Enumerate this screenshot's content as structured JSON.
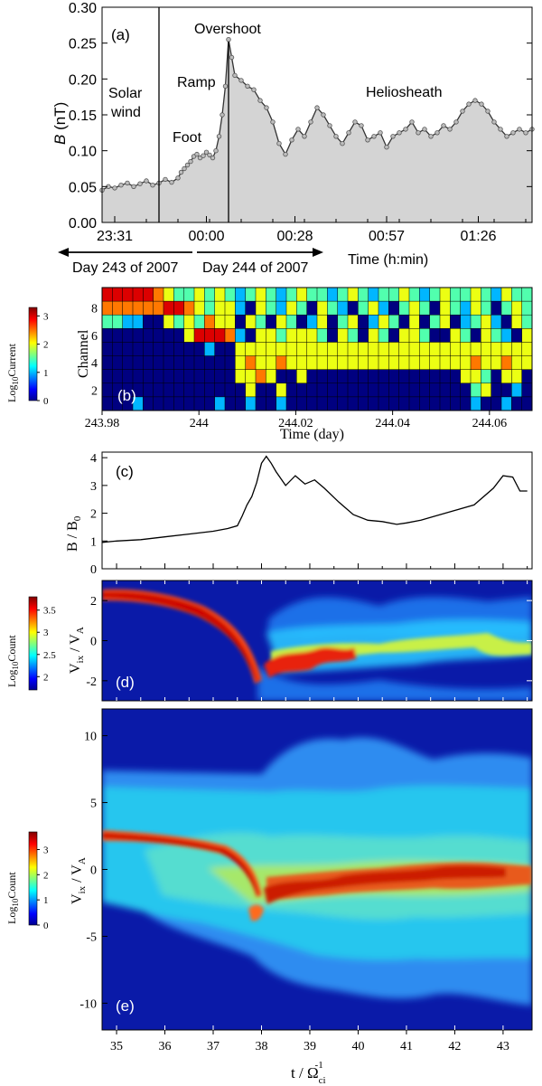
{
  "chart_data": [
    {
      "panel": "(a)",
      "type": "area",
      "xlabel": "Time (h:min)",
      "ylabel": "B (nT)",
      "ylim": [
        0,
        0.3
      ],
      "yticks": [
        "0.00",
        "0.05",
        "0.10",
        "0.15",
        "0.20",
        "0.25",
        "0.30"
      ],
      "xticks": [
        "23:31",
        "00:00",
        "00:28",
        "00:57",
        "01:26"
      ],
      "x_minutes_from_2331": [
        0,
        29,
        57,
        86,
        115
      ],
      "regions": [
        "Solar wind",
        "Foot",
        "Ramp",
        "Overshoot",
        "Heliosheath"
      ],
      "day_labels": [
        "Day 243 of 2007",
        "Day 244 of 2007"
      ],
      "series": [
        {
          "x": [
            -4,
            -2,
            0,
            2,
            4,
            6,
            8,
            10,
            12,
            14,
            16,
            18,
            20,
            21,
            22,
            23,
            24,
            25,
            26,
            27,
            28,
            29,
            30,
            31,
            32,
            33,
            34,
            35,
            36,
            37,
            38,
            40,
            42,
            44,
            46,
            48,
            50,
            52,
            54,
            56,
            58,
            60,
            62,
            64,
            66,
            68,
            70,
            72,
            74,
            76,
            78,
            80,
            82,
            84,
            86,
            88,
            90,
            92,
            94,
            96,
            98,
            100,
            102,
            104,
            106,
            108,
            110,
            112,
            114,
            116,
            118,
            120,
            122,
            124,
            126,
            128,
            130,
            132
          ],
          "values": [
            0.045,
            0.05,
            0.048,
            0.052,
            0.055,
            0.05,
            0.054,
            0.058,
            0.052,
            0.055,
            0.06,
            0.056,
            0.062,
            0.07,
            0.075,
            0.08,
            0.085,
            0.092,
            0.095,
            0.09,
            0.093,
            0.098,
            0.094,
            0.09,
            0.1,
            0.12,
            0.15,
            0.19,
            0.255,
            0.23,
            0.205,
            0.198,
            0.19,
            0.185,
            0.17,
            0.16,
            0.14,
            0.11,
            0.095,
            0.115,
            0.13,
            0.12,
            0.14,
            0.16,
            0.15,
            0.135,
            0.12,
            0.11,
            0.125,
            0.14,
            0.135,
            0.115,
            0.12,
            0.125,
            0.105,
            0.12,
            0.125,
            0.13,
            0.14,
            0.125,
            0.13,
            0.12,
            0.125,
            0.135,
            0.13,
            0.14,
            0.155,
            0.165,
            0.17,
            0.165,
            0.155,
            0.14,
            0.13,
            0.12,
            0.125,
            0.13,
            0.125,
            0.13
          ]
        }
      ]
    },
    {
      "panel": "(b)",
      "type": "heatmap",
      "xlabel": "Time (day)",
      "ylabel": "Channel",
      "xticks": [
        "243.98",
        "244",
        "244.02",
        "244.04",
        "244.06"
      ],
      "yticks": [
        "2",
        "4",
        "6",
        "8"
      ],
      "colorbar_label": "Log10Current",
      "colorbar_ticks": [
        "0",
        "1",
        "2",
        "3"
      ],
      "channels_top_to_bottom": [
        9,
        8,
        7,
        6,
        5,
        4,
        3,
        2,
        1
      ],
      "grid": [
        [
          3,
          3,
          3,
          3,
          3,
          2.5,
          2,
          1.5,
          1.5,
          2,
          1.5,
          2,
          1.5,
          1,
          1.5,
          2,
          1.5,
          1,
          1.5,
          2,
          1.5,
          1.5,
          1,
          1.5,
          2,
          1.5,
          1,
          1.5,
          1.5,
          2,
          1.5,
          1,
          1.5,
          2,
          1.5,
          1.5,
          2,
          1.5,
          1,
          2,
          1.5,
          1.5
        ],
        [
          2.5,
          2.5,
          2.5,
          2.5,
          2.5,
          2.5,
          3,
          3,
          2.5,
          2,
          1.5,
          2,
          2,
          1,
          0,
          2,
          1.5,
          1,
          2,
          1.5,
          0,
          2,
          1.5,
          1,
          0,
          1.5,
          2,
          1,
          0,
          1.5,
          2,
          1.5,
          0,
          2,
          1.5,
          1,
          2,
          1.5,
          0,
          1.5,
          2,
          1.5
        ],
        [
          1.5,
          1.5,
          1,
          1,
          0,
          0,
          2,
          1.5,
          2,
          1.5,
          2.5,
          2,
          2,
          0,
          2,
          1.5,
          0,
          2,
          1.5,
          0,
          1,
          2,
          0,
          1.5,
          2,
          0,
          1,
          2,
          1.5,
          0,
          2,
          0,
          1.5,
          2,
          0,
          1,
          1.5,
          2,
          1,
          0,
          2,
          1.5
        ],
        [
          0,
          0,
          0,
          0,
          0,
          0,
          0,
          0,
          2,
          3,
          3,
          3,
          2.5,
          1,
          0,
          2,
          2,
          1.5,
          2,
          2,
          2,
          1.5,
          0,
          2,
          1.5,
          0,
          2,
          1.5,
          0,
          2,
          2,
          1.5,
          0,
          0,
          2,
          1.5,
          0,
          2,
          1.5,
          1,
          0,
          2
        ],
        [
          0,
          0,
          0,
          0,
          0,
          0,
          0,
          0,
          0,
          0,
          1,
          0,
          0,
          2,
          2,
          2,
          2,
          2,
          2,
          2,
          2,
          2,
          2,
          2,
          2,
          2,
          2,
          2,
          2,
          2,
          2,
          2,
          2,
          2,
          2,
          2,
          2,
          2,
          2,
          2,
          2,
          2
        ],
        [
          0,
          0,
          0,
          0,
          0,
          0,
          0,
          0,
          0,
          0,
          0,
          0,
          0,
          2,
          2.5,
          2,
          2,
          2.5,
          2,
          2,
          2,
          2,
          2,
          2,
          2,
          2,
          2,
          2,
          2,
          2,
          2,
          2,
          2,
          2,
          2,
          2,
          2.5,
          2,
          2,
          2.5,
          2,
          2
        ],
        [
          0,
          0,
          0,
          0,
          0,
          0,
          0,
          0,
          0,
          0,
          0,
          0,
          0,
          2,
          2,
          2.5,
          2,
          0,
          0,
          2,
          0,
          0,
          0,
          0,
          0,
          0,
          0,
          0,
          0,
          0,
          0,
          0,
          0,
          0,
          0,
          2,
          2,
          1.5,
          0,
          2,
          2,
          0
        ],
        [
          0,
          0,
          0,
          0,
          0,
          0,
          0,
          0,
          0,
          0,
          0,
          0,
          0,
          0,
          2,
          0,
          0,
          2,
          0,
          0,
          0,
          0,
          0,
          0,
          0,
          0,
          0,
          0,
          0,
          0,
          0,
          0,
          0,
          0,
          0,
          0,
          1.5,
          2,
          0,
          0,
          1,
          0
        ],
        [
          0,
          0,
          0,
          1,
          0,
          0,
          0,
          0,
          0,
          0,
          0,
          1,
          0,
          0,
          1,
          0,
          0,
          1,
          0,
          0,
          0,
          0,
          0,
          0,
          0,
          0,
          0,
          0,
          0,
          0,
          0,
          0,
          0,
          0,
          0,
          0,
          1,
          0,
          0,
          1,
          0,
          0
        ]
      ]
    },
    {
      "panel": "(c)",
      "type": "line",
      "ylabel": "B / B0",
      "ylim": [
        0,
        4.2
      ],
      "yticks": [
        "0",
        "1",
        "2",
        "3",
        "4"
      ],
      "x": [
        34.7,
        35,
        35.5,
        36,
        36.5,
        37,
        37.3,
        37.5,
        37.6,
        37.7,
        37.8,
        37.9,
        38.0,
        38.1,
        38.2,
        38.3,
        38.5,
        38.7,
        38.9,
        39.1,
        39.3,
        39.6,
        39.9,
        40.2,
        40.5,
        40.8,
        41.0,
        41.3,
        41.6,
        42.0,
        42.4,
        42.8,
        43.0,
        43.2,
        43.35,
        43.5
      ],
      "values": [
        0.95,
        1.0,
        1.05,
        1.15,
        1.25,
        1.35,
        1.45,
        1.55,
        1.9,
        2.3,
        2.6,
        3.1,
        3.8,
        4.05,
        3.8,
        3.5,
        3.0,
        3.35,
        3.05,
        3.2,
        2.9,
        2.4,
        1.95,
        1.75,
        1.7,
        1.6,
        1.65,
        1.75,
        1.9,
        2.1,
        2.3,
        2.9,
        3.35,
        3.3,
        2.8,
        2.8
      ]
    },
    {
      "panel": "(d)",
      "type": "heatmap",
      "ylabel": "Vix / VA",
      "ylim": [
        -3,
        3
      ],
      "yticks": [
        "2",
        "0",
        "-2"
      ],
      "colorbar_label": "Log10Count",
      "colorbar_ticks": [
        "2",
        "2.5",
        "3",
        "3.5"
      ]
    },
    {
      "panel": "(e)",
      "type": "heatmap",
      "xlabel": "t / Ωci-1",
      "ylabel": "Vix / VA",
      "ylim": [
        -12,
        12
      ],
      "xlim": [
        34.7,
        43.6
      ],
      "xticks": [
        "35",
        "36",
        "37",
        "38",
        "39",
        "40",
        "41",
        "42",
        "43"
      ],
      "yticks": [
        "10",
        "5",
        "0",
        "-5",
        "-10"
      ],
      "colorbar_label": "Log10Count",
      "colorbar_ticks": [
        "0",
        "1",
        "2",
        "3"
      ]
    }
  ],
  "labels": {
    "a": "(a)",
    "b": "(b)",
    "c": "(c)",
    "d": "(d)",
    "e": "(e)",
    "solar": "Solar",
    "wind": "wind",
    "foot": "Foot",
    "ramp": "Ramp",
    "overshoot": "Overshoot",
    "helio": "Heliosheath",
    "day243": "Day 243 of 2007",
    "day244": "Day 244 of 2007",
    "time_hmin": "Time (h:min)",
    "b_nt_B": "B",
    "b_nt_rest": " (nT)",
    "channel": "Channel",
    "time_day": "Time (day)",
    "log": "Log",
    "ten": "10",
    "current": "Current",
    "count": "Count",
    "bb0_B": "B / B",
    "bb0_sub": "0",
    "v": "V",
    "ix": "ix",
    "va": " / V",
    "a_sub": "A",
    "t_over": "t / Ω",
    "ci": "ci",
    "minus1": "-1"
  }
}
